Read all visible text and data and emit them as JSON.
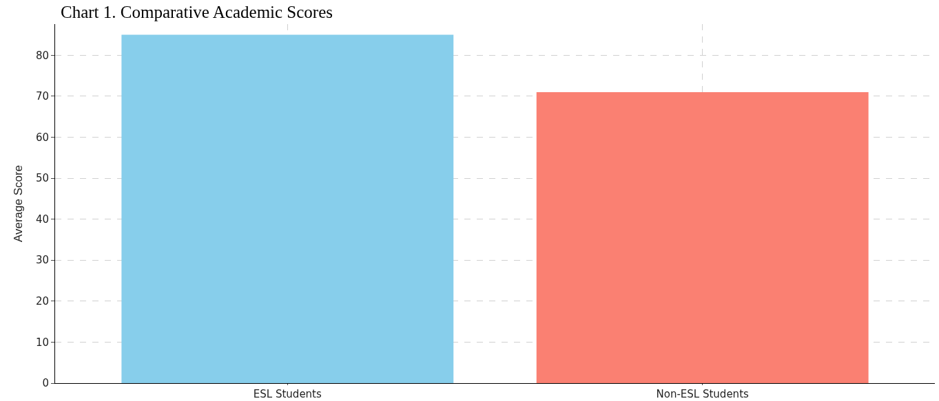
{
  "chart_data": {
    "type": "bar",
    "title": "Chart 1. Comparative Academic Scores",
    "ylabel": "Average Score",
    "categories": [
      "ESL Students",
      "Non-ESL Students"
    ],
    "values": [
      85,
      71
    ],
    "colors": [
      "#87ceeb",
      "#fa8072"
    ],
    "ylim": [
      0,
      87.6
    ],
    "yticks": [
      0,
      10,
      20,
      30,
      40,
      50,
      60,
      70,
      80
    ],
    "grid": true
  }
}
